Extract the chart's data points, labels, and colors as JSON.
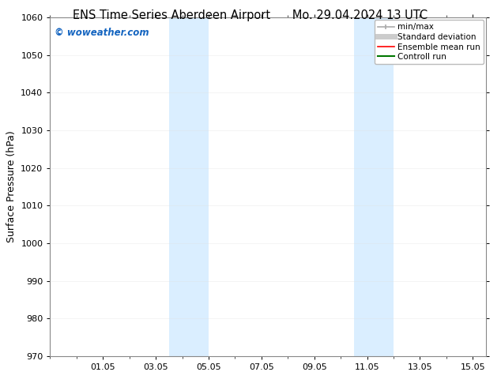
{
  "title_left": "ENS Time Series Aberdeen Airport",
  "title_right": "Mo. 29.04.2024 13 UTC",
  "ylabel": "Surface Pressure (hPa)",
  "ylim": [
    970,
    1060
  ],
  "yticks": [
    970,
    980,
    990,
    1000,
    1010,
    1020,
    1030,
    1040,
    1050,
    1060
  ],
  "xlim": [
    0,
    16.5
  ],
  "xtick_labels": [
    "01.05",
    "03.05",
    "05.05",
    "07.05",
    "09.05",
    "11.05",
    "13.05",
    "15.05"
  ],
  "xtick_positions": [
    2,
    4,
    6,
    8,
    10,
    12,
    14,
    16
  ],
  "shaded_bands": [
    {
      "x_start": 4.5,
      "x_end": 6.0
    },
    {
      "x_start": 11.5,
      "x_end": 13.0
    }
  ],
  "band_color": "#daeeff",
  "watermark": "© woweather.com",
  "watermark_color": "#1565c0",
  "legend_items": [
    {
      "label": "min/max",
      "color": "#aaaaaa",
      "lw": 1.2
    },
    {
      "label": "Standard deviation",
      "color": "#cccccc",
      "lw": 5
    },
    {
      "label": "Ensemble mean run",
      "color": "#ff0000",
      "lw": 1.2
    },
    {
      "label": "Controll run",
      "color": "#007700",
      "lw": 1.5
    }
  ],
  "bg_color": "#ffffff",
  "spine_color": "#888888",
  "title_fontsize": 10.5,
  "ylabel_fontsize": 9,
  "tick_fontsize": 8,
  "watermark_fontsize": 8.5,
  "legend_fontsize": 7.5
}
